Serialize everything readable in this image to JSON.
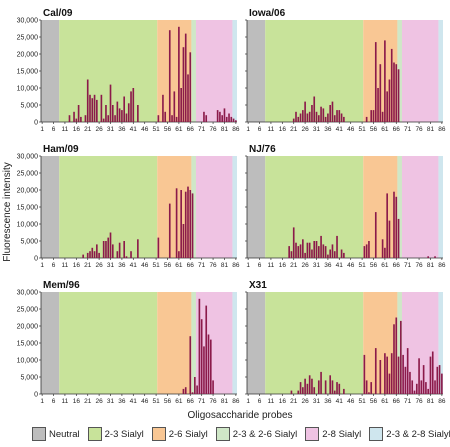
{
  "chart_data": {
    "type": "bar",
    "ylabel": "Fluorescence intensity",
    "xlabel": "Oligosaccharide probes",
    "ylim": [
      0,
      30000
    ],
    "yticks": [
      "0",
      "5,000",
      "10,000",
      "15,000",
      "20,000",
      "25,000",
      "30,000"
    ],
    "xticks": [
      "1",
      "6",
      "11",
      "16",
      "21",
      "26",
      "31",
      "36",
      "41",
      "46",
      "51",
      "56",
      "61",
      "66",
      "71",
      "76",
      "81",
      "86"
    ],
    "n_probes": 86,
    "regions": [
      {
        "name": "Neutral",
        "from": 1,
        "to": 8,
        "color": "#bdbdbd"
      },
      {
        "name": "2-3 Sialyl",
        "from": 9,
        "to": 51,
        "color": "#c8e39a"
      },
      {
        "name": "2-6 Sialyl",
        "from": 52,
        "to": 66,
        "color": "#f9c794"
      },
      {
        "name": "2-3 & 2-6 Sialyl",
        "from": 67,
        "to": 68,
        "color": "#cfe7c7"
      },
      {
        "name": "2-8 Sialyl",
        "from": 69,
        "to": 84,
        "color": "#efc3e3"
      },
      {
        "name": "2-3 & 2-8 Sialyl",
        "from": 85,
        "to": 86,
        "color": "#cfe6ee"
      }
    ],
    "bar_color": "#8b1a4a",
    "panels": [
      {
        "label": "Cal/09",
        "values": [
          0,
          0,
          0,
          0,
          0,
          0,
          0,
          0,
          0,
          0,
          0,
          0,
          2000,
          0,
          3000,
          1000,
          5000,
          1500,
          0,
          2000,
          12500,
          8000,
          7000,
          8000,
          6500,
          0,
          8000,
          1000,
          5000,
          2000,
          11000,
          5000,
          2000,
          6000,
          4000,
          3500,
          7500,
          2500,
          5500,
          9000,
          10000,
          0,
          5000,
          0,
          0,
          0,
          0,
          0,
          0,
          0,
          0,
          2000,
          0,
          8000,
          3000,
          0,
          27000,
          2000,
          9000,
          1500,
          28000,
          10000,
          22000,
          26000,
          14000,
          20500,
          0,
          0,
          0,
          0,
          0,
          3000,
          2000,
          0,
          0,
          0,
          0,
          3500,
          3000,
          2000,
          4000,
          1500,
          2500,
          1500,
          1000,
          500
        ]
      },
      {
        "label": "Iowa/06",
        "values": [
          0,
          0,
          0,
          0,
          0,
          0,
          0,
          0,
          0,
          0,
          0,
          0,
          0,
          0,
          0,
          0,
          0,
          0,
          0,
          0,
          1000,
          3000,
          1500,
          2500,
          3500,
          6000,
          2500,
          3000,
          5000,
          7500,
          3000,
          2000,
          4500,
          4000,
          1500,
          2500,
          5000,
          6000,
          2000,
          3500,
          3500,
          2500,
          1500,
          0,
          0,
          0,
          0,
          0,
          0,
          0,
          0,
          0,
          1500,
          0,
          3500,
          3500,
          23500,
          10000,
          17000,
          3000,
          24000,
          9000,
          12500,
          21500,
          17500,
          17000,
          15500,
          0,
          0,
          0,
          0,
          0,
          0,
          0,
          0,
          0,
          0,
          0,
          0,
          0,
          0,
          0,
          0,
          0,
          0,
          0
        ]
      },
      {
        "label": "Ham/09",
        "values": [
          0,
          0,
          0,
          0,
          0,
          0,
          0,
          0,
          0,
          0,
          0,
          0,
          0,
          0,
          0,
          0,
          0,
          0,
          1000,
          0,
          1500,
          2000,
          3000,
          2000,
          4000,
          1500,
          0,
          5000,
          5000,
          6000,
          7500,
          4000,
          0,
          2000,
          4500,
          0,
          5000,
          500,
          0,
          2000,
          0,
          0,
          5500,
          0,
          0,
          0,
          0,
          0,
          0,
          0,
          0,
          6000,
          0,
          0,
          0,
          0,
          16000,
          0,
          0,
          20500,
          2000,
          20000,
          10000,
          19500,
          21000,
          20000,
          19000,
          0,
          0,
          0,
          0,
          0,
          0,
          0,
          0,
          0,
          0,
          0,
          0,
          0,
          0,
          0,
          0,
          0,
          0,
          0
        ]
      },
      {
        "label": "NJ/76",
        "values": [
          0,
          0,
          0,
          0,
          0,
          0,
          0,
          0,
          0,
          0,
          0,
          0,
          0,
          0,
          0,
          0,
          0,
          0,
          3500,
          2000,
          9000,
          4500,
          3500,
          4000,
          5500,
          1500,
          4500,
          4500,
          2500,
          5000,
          5000,
          3500,
          6500,
          4000,
          3500,
          1000,
          2500,
          4000,
          2000,
          6500,
          0,
          2500,
          1500,
          0,
          0,
          0,
          0,
          0,
          0,
          0,
          0,
          3500,
          4000,
          5000,
          0,
          0,
          13500,
          0,
          0,
          5500,
          3000,
          19000,
          11000,
          0,
          19500,
          18000,
          11500,
          0,
          0,
          0,
          0,
          0,
          0,
          0,
          0,
          0,
          0,
          0,
          0,
          500,
          0,
          0,
          500,
          0,
          0,
          0
        ]
      },
      {
        "label": "Mem/96",
        "values": [
          0,
          0,
          0,
          0,
          0,
          0,
          0,
          0,
          0,
          0,
          0,
          0,
          0,
          0,
          0,
          0,
          0,
          0,
          0,
          0,
          0,
          0,
          0,
          0,
          0,
          0,
          0,
          0,
          0,
          0,
          0,
          0,
          0,
          0,
          0,
          0,
          0,
          0,
          0,
          0,
          0,
          0,
          0,
          0,
          0,
          0,
          0,
          0,
          0,
          0,
          0,
          0,
          0,
          0,
          0,
          0,
          0,
          0,
          0,
          0,
          0,
          0,
          1500,
          2000,
          0,
          17000,
          500,
          5000,
          2500,
          28000,
          22000,
          14000,
          26000,
          17500,
          16000,
          4000,
          0,
          0,
          0,
          0,
          0,
          0,
          0,
          0,
          0,
          0
        ]
      },
      {
        "label": "X31",
        "values": [
          0,
          0,
          0,
          0,
          0,
          0,
          0,
          0,
          0,
          0,
          0,
          0,
          0,
          0,
          0,
          0,
          0,
          0,
          0,
          1000,
          0,
          0,
          1000,
          3500,
          2000,
          4500,
          3000,
          5500,
          4500,
          2000,
          0,
          4000,
          6500,
          0,
          4000,
          0,
          5500,
          4000,
          1000,
          3500,
          3000,
          0,
          1500,
          0,
          0,
          0,
          0,
          0,
          0,
          0,
          0,
          11500,
          4000,
          500,
          3500,
          0,
          13500,
          0,
          10000,
          0,
          12000,
          11000,
          6000,
          12000,
          20500,
          22500,
          11000,
          21500,
          11500,
          8000,
          13500,
          6500,
          4000,
          1000,
          3000,
          10500,
          4000,
          8500,
          3500,
          1500,
          11000,
          12500,
          4000,
          8000,
          8500,
          6000
        ]
      }
    ],
    "legend": [
      "Neutral",
      "2-3 Sialyl",
      "2-6 Sialyl",
      "2-3 & 2-6 Sialyl",
      "2-8 Sialyl",
      "2-3 & 2-8 Sialyl"
    ]
  }
}
